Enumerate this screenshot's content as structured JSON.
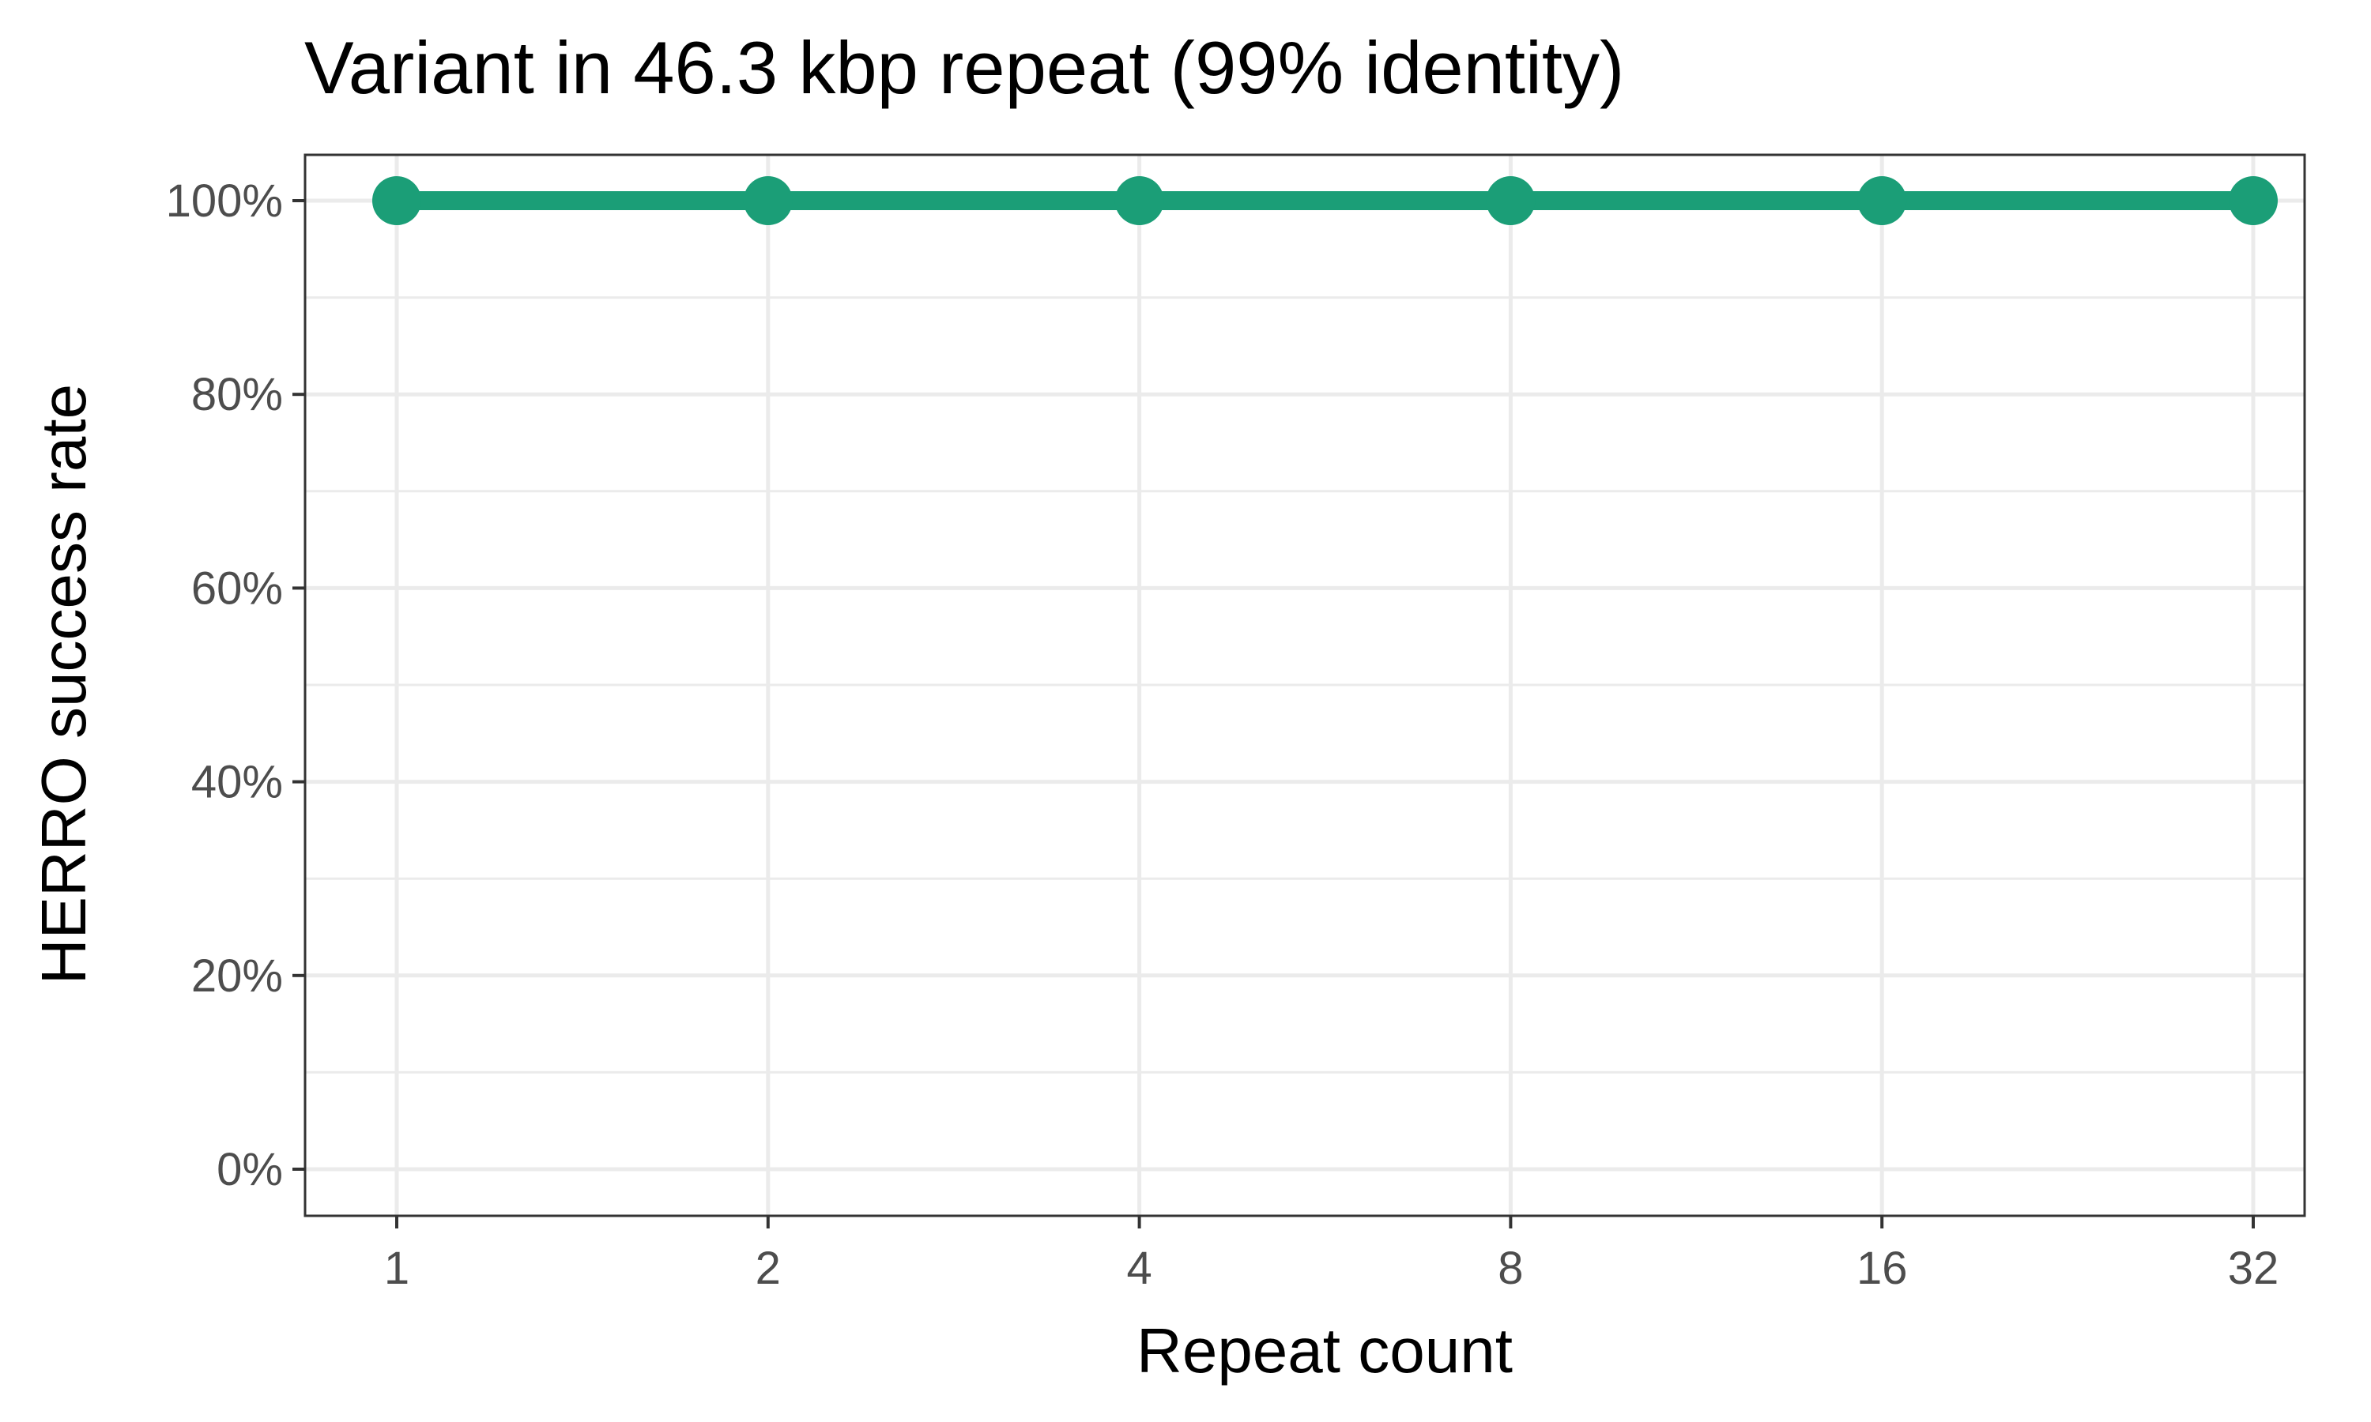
{
  "chart_data": {
    "type": "line",
    "title": "Variant in 46.3 kbp repeat (99% identity)",
    "xlabel": "Repeat count",
    "ylabel": "HERRO success rate",
    "x_scale": "log2",
    "categories": [
      "1",
      "2",
      "4",
      "8",
      "16",
      "32"
    ],
    "x": [
      1,
      2,
      4,
      8,
      16,
      32
    ],
    "series": [
      {
        "values": [
          1.0,
          1.0,
          1.0,
          1.0,
          1.0,
          1.0
        ],
        "color": "#1b9e77"
      }
    ],
    "ylim": [
      0,
      1
    ],
    "yticks": [
      0,
      0.2,
      0.4,
      0.6,
      0.8,
      1.0
    ],
    "ytick_labels": [
      "0%",
      "20%",
      "40%",
      "60%",
      "80%",
      "100%"
    ],
    "xtick_labels": [
      "1",
      "2",
      "4",
      "8",
      "16",
      "32"
    ],
    "grid": true,
    "legend": "none"
  },
  "colors": {
    "series": "#1b9e77",
    "grid": "#ebebeb",
    "panel_border": "#333333",
    "tick_text": "#4d4d4d"
  }
}
